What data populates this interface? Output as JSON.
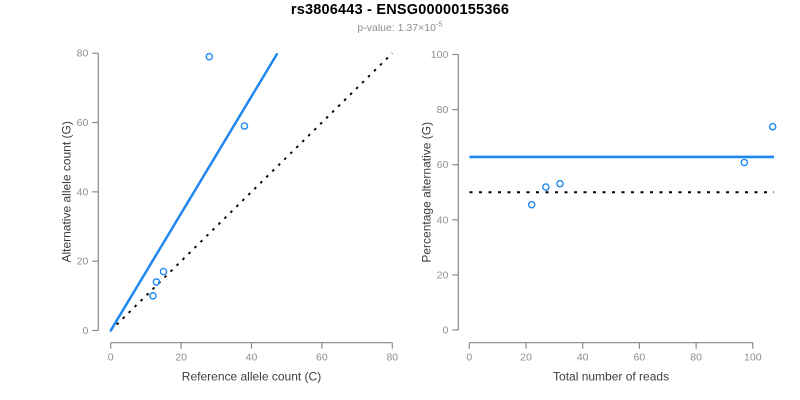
{
  "header": {
    "title": "rs3806443 - ENSG00000155366",
    "subtitle_prefix": "p-value: 1.37×10",
    "subtitle_exponent": "-5"
  },
  "colors": {
    "accent_blue": "#1f88f0",
    "dotted_line": "#000000",
    "axis_line": "#888888",
    "tick_label": "#8f8f8f",
    "axis_title": "#3d3d3d",
    "subtitle_gray": "#8e8e8e"
  },
  "chart_data": [
    {
      "type": "scatter",
      "panel": "left",
      "xlabel": "Reference allele count (C)",
      "ylabel": "Alternative allele count (G)",
      "xlim": [
        0,
        80
      ],
      "ylim": [
        0,
        80
      ],
      "xticks": [
        0,
        20,
        40,
        60,
        80
      ],
      "yticks": [
        0,
        20,
        40,
        60,
        80
      ],
      "grid": false,
      "legend": "none",
      "points": [
        {
          "x": 12,
          "y": 10
        },
        {
          "x": 13,
          "y": 14
        },
        {
          "x": 15,
          "y": 17
        },
        {
          "x": 28,
          "y": 79
        },
        {
          "x": 38,
          "y": 59
        }
      ],
      "regression_line": {
        "x1": 0,
        "y1": 0,
        "x2": 47.2,
        "y2": 79.7,
        "slope": 1.69,
        "style": "solid-blue"
      },
      "identity_line": {
        "x1": 0,
        "y1": 0,
        "x2": 80,
        "y2": 80,
        "style": "dotted-black"
      }
    },
    {
      "type": "scatter",
      "panel": "right",
      "xlabel": "Total number of reads",
      "ylabel": "Percentage alternative (G)",
      "xlim": [
        0,
        107
      ],
      "ylim": [
        0,
        100
      ],
      "xticks": [
        0,
        20,
        40,
        60,
        80,
        100
      ],
      "yticks": [
        0,
        20,
        40,
        60,
        80,
        100
      ],
      "grid": false,
      "legend": "none",
      "points": [
        {
          "x": 22,
          "y": 45.5
        },
        {
          "x": 27,
          "y": 51.9
        },
        {
          "x": 32,
          "y": 53.1
        },
        {
          "x": 97,
          "y": 60.8
        },
        {
          "x": 107,
          "y": 73.8
        }
      ],
      "mean_line": {
        "y": 62.8,
        "style": "solid-blue"
      },
      "reference_line": {
        "y": 50,
        "style": "dotted-black"
      }
    }
  ]
}
